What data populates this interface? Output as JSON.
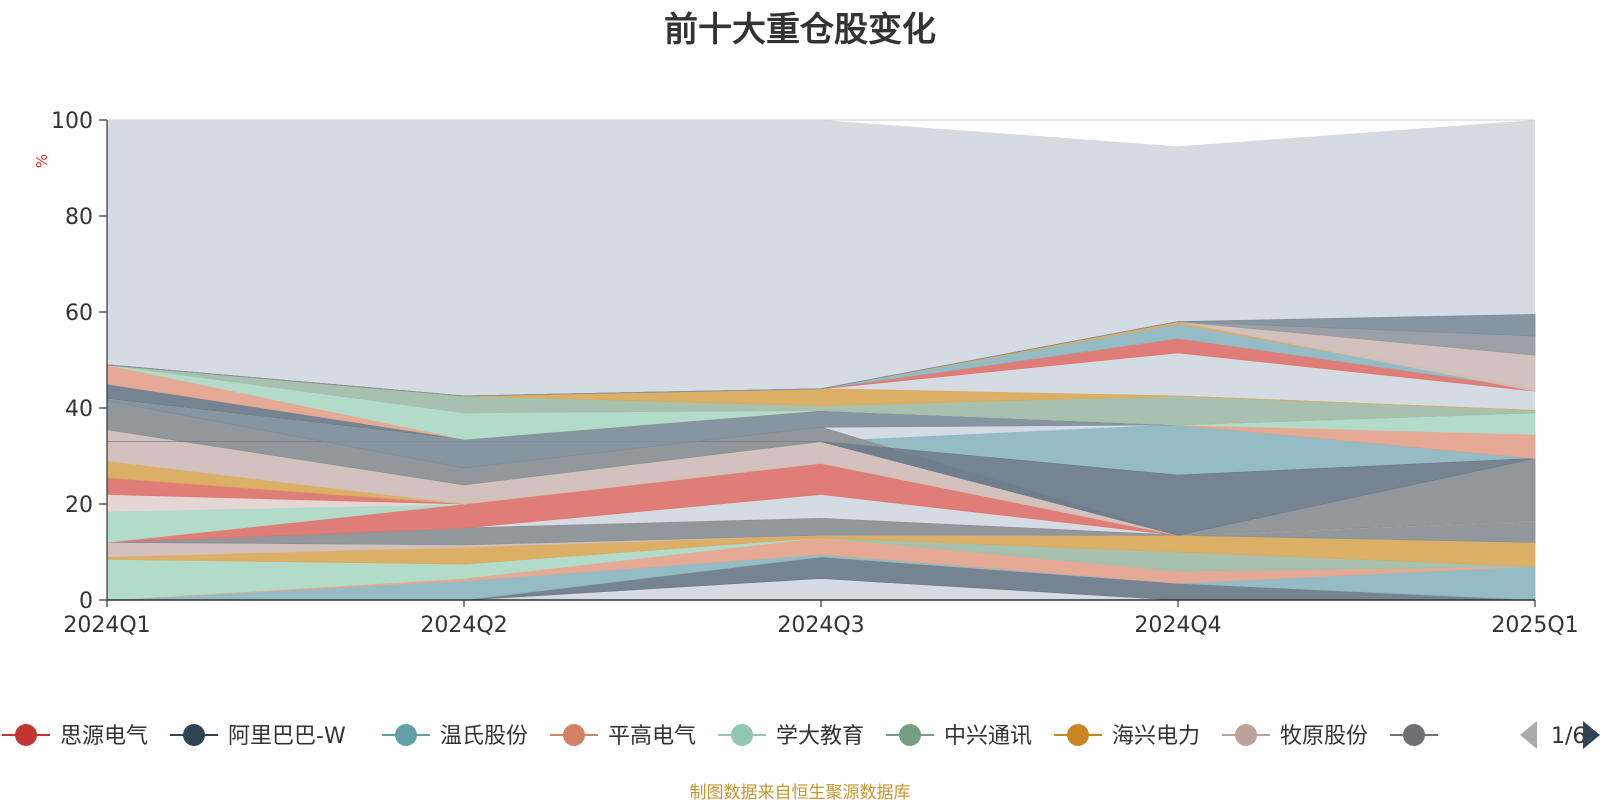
{
  "title": "前十大重仓股变化",
  "source_note": "制图数据来自恒生聚源数据库",
  "chart_data": {
    "type": "area",
    "title": "前十大重仓股变化",
    "ylabel": "%",
    "ylim": [
      0,
      100
    ],
    "y_ticks": [
      0,
      20,
      40,
      60,
      80,
      100
    ],
    "categories": [
      "2024Q1",
      "2024Q2",
      "2024Q3",
      "2024Q4",
      "2025Q1"
    ],
    "grid": true,
    "legend_position": "bottom",
    "legend_page": "1/6",
    "legend": [
      {
        "name": "思源电气",
        "color": "#c23531"
      },
      {
        "name": "阿里巴巴-W",
        "color": "#2f4554"
      },
      {
        "name": "温氏股份",
        "color": "#61a0a8"
      },
      {
        "name": "平高电气",
        "color": "#d48265"
      },
      {
        "name": "学大教育",
        "color": "#91c7ae"
      },
      {
        "name": "中兴通讯",
        "color": "#749f83"
      },
      {
        "name": "海兴电力",
        "color": "#ca8622"
      },
      {
        "name": "牧原股份",
        "color": "#bda29a"
      },
      {
        "name": "",
        "color": "#6e7074"
      }
    ],
    "background_band": {
      "color": "#d5dbe2",
      "top_values": [
        100,
        100,
        100,
        94.5,
        100
      ]
    },
    "layers": [
      {
        "color": "#e0766f",
        "bottom": [
          0,
          0,
          4.5,
          0,
          0
        ],
        "top": [
          0,
          0,
          4.5,
          0,
          0
        ]
      },
      {
        "color": "#6e7d8a",
        "bottom": [
          0,
          0,
          4.5,
          0,
          0
        ],
        "top": [
          0,
          0,
          9.0,
          3.5,
          0
        ]
      },
      {
        "color": "#8fbac1",
        "bottom": [
          0,
          0,
          9.0,
          3.5,
          0
        ],
        "top": [
          0,
          4.0,
          9.5,
          3.5,
          7.0
        ]
      },
      {
        "color": "#e5a68f",
        "bottom": [
          0,
          4.0,
          9.5,
          3.5,
          7.0
        ],
        "top": [
          0,
          4.5,
          13.0,
          6.0,
          7.0
        ]
      },
      {
        "color": "#b0dbc7",
        "bottom": [
          0,
          4.5,
          13.0,
          6.0,
          7.0
        ],
        "top": [
          8.5,
          7.5,
          13.0,
          6.0,
          7.0
        ]
      },
      {
        "color": "#a3bfa9",
        "bottom": [
          8.5,
          7.5,
          13.0,
          6.0,
          7.0
        ],
        "top": [
          8.5,
          7.5,
          13.0,
          10.0,
          7.0
        ]
      },
      {
        "color": "#dcab5c",
        "bottom": [
          8.5,
          7.5,
          13.0,
          10.0,
          7.0
        ],
        "top": [
          9.0,
          11.0,
          13.5,
          13.5,
          12.0
        ]
      },
      {
        "color": "#d3bfba",
        "bottom": [
          9.0,
          11.0,
          13.5,
          13.5,
          12.0
        ],
        "top": [
          12.0,
          11.5,
          13.5,
          13.5,
          12.0
        ]
      },
      {
        "color": "#8c9196",
        "bottom": [
          12.0,
          11.5,
          13.5,
          13.5,
          12.0
        ],
        "top": [
          12.0,
          15.0,
          17.0,
          13.5,
          16.5
        ]
      },
      {
        "color": "#e0766f",
        "bottom": [
          12.0,
          15.0,
          22.0,
          13.5,
          16.5
        ],
        "top": [
          12.0,
          20.0,
          28.5,
          13.5,
          16.5
        ]
      },
      {
        "color": "#b0dbc7",
        "bottom": [
          12.0,
          20.0,
          28.5,
          13.5,
          16.5
        ],
        "top": [
          18.5,
          20.0,
          28.5,
          13.5,
          16.5
        ]
      },
      {
        "color": "#e6d6d3",
        "bottom": [
          18.5,
          20.0,
          28.5,
          13.5,
          16.5
        ],
        "top": [
          22.0,
          20.0,
          28.5,
          13.5,
          16.5
        ]
      },
      {
        "color": "#e0766f",
        "bottom": [
          22.0,
          20.0,
          28.5,
          13.5,
          16.5
        ],
        "top": [
          25.5,
          20.0,
          28.5,
          13.5,
          16.5
        ]
      },
      {
        "color": "#dcab5c",
        "bottom": [
          25.5,
          20.0,
          28.5,
          13.5,
          16.5
        ],
        "top": [
          29.0,
          20.0,
          28.5,
          13.5,
          16.5
        ]
      },
      {
        "color": "#d3bfba",
        "bottom": [
          29.0,
          20.0,
          28.5,
          13.5,
          16.5
        ],
        "top": [
          35.5,
          24.0,
          33.0,
          13.5,
          16.5
        ]
      },
      {
        "color": "#8fbac1",
        "bottom": [
          35.5,
          24.0,
          33.0,
          26.0,
          29.5
        ],
        "top": [
          35.5,
          24.0,
          33.0,
          36.5,
          29.5
        ]
      },
      {
        "color": "#8c9196",
        "bottom": [
          35.5,
          24.0,
          33.0,
          13.5,
          16.5
        ],
        "top": [
          41.5,
          27.5,
          36.0,
          13.5,
          29.5
        ]
      },
      {
        "color": "#6e7d8a",
        "bottom": [
          33.0,
          33.0,
          33.0,
          13.5,
          29.5
        ],
        "top": [
          33.0,
          33.0,
          33.0,
          26.0,
          29.5
        ]
      },
      {
        "color": "#7f8f99",
        "bottom": [
          41.5,
          27.5,
          36.0,
          36.5,
          29.5
        ],
        "top": [
          42.0,
          33.5,
          39.5,
          36.5,
          29.5
        ]
      },
      {
        "color": "#e5a68f",
        "bottom": [
          42.0,
          33.5,
          39.5,
          36.5,
          29.5
        ],
        "top": [
          42.0,
          33.5,
          39.5,
          36.5,
          34.5
        ]
      },
      {
        "color": "#b0dbc7",
        "bottom": [
          42.0,
          33.5,
          39.5,
          36.5,
          34.5
        ],
        "top": [
          42.0,
          33.5,
          39.5,
          36.5,
          39.0
        ]
      },
      {
        "color": "#6e7d8a",
        "bottom": [
          42.0,
          33.5,
          39.5,
          36.5,
          39.0
        ],
        "top": [
          45.0,
          33.5,
          39.5,
          36.5,
          39.0
        ]
      },
      {
        "color": "#e5a68f",
        "bottom": [
          45.0,
          33.5,
          39.5,
          36.5,
          39.0
        ],
        "top": [
          49.0,
          33.5,
          39.5,
          36.5,
          39.0
        ]
      },
      {
        "color": "#b0dbc7",
        "bottom": [
          49.0,
          33.5,
          39.5,
          36.5,
          39.0
        ],
        "top": [
          49.0,
          39.0,
          39.5,
          36.5,
          39.0
        ]
      },
      {
        "color": "#a3bfa9",
        "bottom": [
          49.0,
          39.0,
          39.5,
          36.5,
          39.0
        ],
        "top": [
          49.0,
          42.5,
          40.5,
          42.5,
          39.5
        ]
      },
      {
        "color": "#dcab5c",
        "bottom": [
          49.0,
          42.5,
          40.5,
          42.5,
          39.5
        ],
        "top": [
          49.0,
          42.5,
          44.0,
          42.5,
          39.5
        ]
      },
      {
        "color": "#e0766f",
        "bottom": [
          49.0,
          42.5,
          44.0,
          51.5,
          43.5
        ],
        "top": [
          49.0,
          42.5,
          44.0,
          54.5,
          44.0
        ]
      },
      {
        "color": "#8fbac1",
        "bottom": [
          49.0,
          42.5,
          44.0,
          54.5,
          44.0
        ],
        "top": [
          49.0,
          42.5,
          44.0,
          57.5,
          44.0
        ]
      },
      {
        "color": "#dcab5c",
        "bottom": [
          49.0,
          42.5,
          44.0,
          57.5,
          44.0
        ],
        "top": [
          49.0,
          42.5,
          44.0,
          58.0,
          44.0
        ]
      },
      {
        "color": "#d3bfba",
        "bottom": [
          49.0,
          42.5,
          44.0,
          58.0,
          43.5
        ],
        "top": [
          49.0,
          42.5,
          44.0,
          58.0,
          51.0
        ]
      },
      {
        "color": "#969aa1",
        "bottom": [
          49.0,
          42.5,
          44.0,
          58.0,
          51.0
        ],
        "top": [
          49.0,
          42.5,
          44.0,
          58.0,
          55.0
        ]
      },
      {
        "color": "#7f8f99",
        "bottom": [
          49.0,
          42.5,
          44.0,
          58.0,
          55.0
        ],
        "top": [
          49.0,
          42.5,
          44.0,
          58.0,
          59.5
        ]
      }
    ]
  }
}
